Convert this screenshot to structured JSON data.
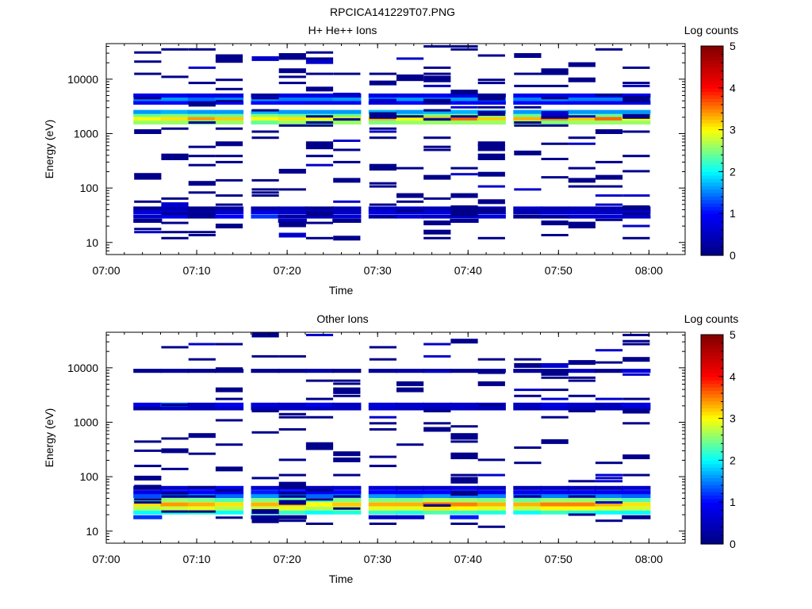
{
  "figure_title": "RPCICA141229T07.PNG",
  "chart_data": [
    {
      "type": "heatmap",
      "title": "H+ He++ Ions",
      "xlabel": "Time",
      "ylabel": "Energy (eV)",
      "x_ticks": [
        "07:00",
        "07:10",
        "07:20",
        "07:30",
        "07:40",
        "07:50",
        "08:00"
      ],
      "x_range": [
        "07:00",
        "08:04"
      ],
      "y_scale": "log",
      "y_ticks": [
        10,
        100,
        1000,
        10000
      ],
      "y_tick_labels": [
        "10",
        "100",
        "1000",
        "10000"
      ],
      "ylim": [
        6,
        45000
      ],
      "colorbar_label": "Log counts",
      "colorbar_range": [
        0,
        5
      ],
      "colorbar_ticks": [
        "0",
        "1",
        "2",
        "3",
        "4",
        "5"
      ],
      "colormap": [
        "#000080",
        "#0000ff",
        "#00ffff",
        "#ffff00",
        "#ff0000",
        "#800000"
      ],
      "sweep_start_times": [
        "07:03",
        "07:06",
        "07:09",
        "07:12",
        "07:16",
        "07:19",
        "07:22",
        "07:25",
        "07:29",
        "07:32",
        "07:35",
        "07:38",
        "07:41",
        "07:45",
        "07:48",
        "07:51",
        "07:54",
        "07:57"
      ],
      "cells": [
        {
          "energy": 1600,
          "level": [
            2.6,
            2.6,
            2.4,
            2.6,
            2.4,
            2.6,
            2.4,
            2.6,
            2.5,
            2.6,
            2.6,
            2.6,
            2.6,
            2.6,
            2.5,
            2.6,
            2.6,
            2.6
          ]
        },
        {
          "energy": 1900,
          "level": [
            3.0,
            3.1,
            3.4,
            3.2,
            3.0,
            3.1,
            3.0,
            3.1,
            3.3,
            3.0,
            3.4,
            3.6,
            3.2,
            3.3,
            3.5,
            3.2,
            3.6,
            3.0
          ]
        },
        {
          "energy": 2200,
          "level": [
            2.4,
            2.5,
            2.4,
            2.4,
            2.5,
            2.4,
            2.3,
            2.4,
            2.5,
            2.4,
            2.5,
            2.5,
            2.4,
            2.4,
            2.5,
            2.4,
            2.4,
            2.4
          ]
        },
        {
          "energy": 2500,
          "level": [
            1.6,
            1.7,
            1.6,
            1.6,
            1.7,
            1.6,
            1.6,
            1.6,
            1.7,
            1.6,
            1.7,
            1.7,
            1.6,
            1.6,
            1.7,
            1.6,
            1.6,
            1.6
          ]
        },
        {
          "energy": 3700,
          "level": [
            0.9,
            1.0,
            0.9,
            1.0,
            1.0,
            1.0,
            0.9,
            0.9,
            1.0,
            1.0,
            0.9,
            1.0,
            0.9,
            1.0,
            1.0,
            0.9,
            0.9,
            0.9
          ]
        },
        {
          "energy": 4300,
          "level": [
            1.5,
            1.6,
            1.4,
            1.5,
            1.6,
            1.5,
            1.5,
            1.6,
            1.5,
            1.6,
            1.5,
            1.6,
            1.5,
            1.5,
            1.6,
            1.5,
            1.5,
            1.5
          ]
        },
        {
          "energy": 5000,
          "level": [
            0.8,
            0.9,
            0.8,
            0.8,
            0.9,
            0.8,
            0.8,
            0.9,
            0.8,
            0.8,
            0.9,
            0.8,
            0.8,
            0.9,
            0.8,
            0.9,
            0.8,
            0.9
          ]
        },
        {
          "energy": 30,
          "level": [
            0.6,
            0.9,
            0.2,
            1.0,
            1.2,
            0.3,
            0.5,
            0.7,
            0.8,
            0.7,
            0.6,
            0.5,
            0.7,
            0.1,
            0.8,
            0.6,
            0.7,
            0.6
          ]
        },
        {
          "energy": 36,
          "level": [
            0.7,
            0.6,
            0.3,
            0.6,
            0.8,
            0.6,
            0.6,
            0.5,
            0.7,
            0.6,
            0.7,
            0.6,
            0.6,
            0.4,
            0.5,
            0.6,
            0.5,
            0.6
          ]
        },
        {
          "energy": 42,
          "level": [
            0.3,
            0.4,
            0.1,
            0.3,
            0.3,
            0.4,
            0.3,
            0.4,
            0.5,
            0.5,
            0.4,
            0.5,
            0.4,
            0.3,
            0.4,
            0.4,
            0.4,
            0.3
          ]
        },
        {
          "energy": 25,
          "level": [
            0.2,
            0,
            0,
            0,
            0,
            0.2,
            0,
            0.1,
            0,
            0,
            0,
            0.2,
            0,
            0,
            0,
            0,
            0,
            0
          ]
        }
      ],
      "sparse_fraction": 0.18
    },
    {
      "type": "heatmap",
      "title": "Other Ions",
      "xlabel": "Time",
      "ylabel": "Energy (eV)",
      "x_ticks": [
        "07:00",
        "07:10",
        "07:20",
        "07:30",
        "07:40",
        "07:50",
        "08:00"
      ],
      "x_range": [
        "07:00",
        "08:04"
      ],
      "y_scale": "log",
      "y_ticks": [
        10,
        100,
        1000,
        10000
      ],
      "y_tick_labels": [
        "10",
        "100",
        "1000",
        "10000"
      ],
      "ylim": [
        6,
        45000
      ],
      "colorbar_label": "Log counts",
      "colorbar_range": [
        0,
        5
      ],
      "colorbar_ticks": [
        "0",
        "1",
        "2",
        "3",
        "4",
        "5"
      ],
      "colormap": [
        "#000080",
        "#0000ff",
        "#00ffff",
        "#ffff00",
        "#ff0000",
        "#800000"
      ],
      "sweep_start_times": [
        "07:03",
        "07:06",
        "07:09",
        "07:12",
        "07:16",
        "07:19",
        "07:22",
        "07:25",
        "07:29",
        "07:32",
        "07:35",
        "07:38",
        "07:41",
        "07:45",
        "07:48",
        "07:51",
        "07:54",
        "07:57"
      ],
      "cells": [
        {
          "energy": 18,
          "level": [
            1.2,
            0,
            0,
            0,
            0.2,
            0.1,
            0,
            0,
            0.6,
            0.6,
            0,
            1.1,
            0,
            0,
            0,
            0,
            0,
            0.1
          ]
        },
        {
          "energy": 22,
          "level": [
            2.0,
            2.1,
            2.2,
            2.0,
            2.1,
            2.2,
            2.0,
            2.1,
            2.2,
            2.1,
            2.3,
            2.2,
            2.1,
            2.0,
            2.2,
            2.1,
            2.0,
            2.0
          ]
        },
        {
          "energy": 26,
          "level": [
            2.7,
            2.8,
            2.9,
            2.7,
            2.8,
            2.9,
            2.7,
            2.8,
            2.9,
            2.9,
            3.1,
            3.0,
            2.9,
            2.8,
            3.0,
            3.0,
            2.9,
            2.8
          ]
        },
        {
          "energy": 31,
          "level": [
            3.1,
            3.4,
            3.3,
            3.1,
            3.3,
            3.2,
            3.0,
            3.2,
            3.3,
            3.3,
            3.6,
            3.5,
            3.3,
            3.3,
            3.5,
            3.5,
            3.3,
            3.1
          ]
        },
        {
          "energy": 37,
          "level": [
            2.3,
            2.6,
            2.5,
            2.3,
            2.5,
            2.4,
            2.3,
            2.5,
            2.5,
            2.5,
            2.7,
            2.6,
            2.5,
            2.4,
            2.6,
            2.6,
            2.5,
            2.3
          ]
        },
        {
          "energy": 44,
          "level": [
            1.3,
            1.5,
            1.6,
            1.4,
            1.6,
            1.5,
            1.4,
            1.5,
            1.6,
            1.5,
            1.6,
            1.5,
            1.5,
            1.4,
            1.5,
            1.5,
            1.5,
            1.4
          ]
        },
        {
          "energy": 52,
          "level": [
            0.8,
            1.0,
            1.0,
            0.9,
            1.1,
            1.0,
            0.9,
            1.0,
            1.0,
            1.0,
            1.0,
            1.0,
            0.9,
            0.9,
            0.9,
            0.9,
            0.9,
            0.9
          ]
        },
        {
          "energy": 62,
          "level": [
            0.5,
            0.6,
            0.7,
            0.9,
            0.6,
            0.6,
            0.5,
            0.6,
            0.7,
            0.5,
            0.6,
            0.7,
            0.5,
            0.4,
            0.5,
            0.4,
            0.4,
            0.6
          ]
        },
        {
          "energy": 1800,
          "level": [
            0.5,
            0.5,
            0.4,
            0.5,
            0.4,
            0.5,
            0.4,
            0.5,
            0.6,
            0.5,
            0.4,
            0.5,
            0.4,
            0.4,
            0.6,
            0.4,
            0.4,
            0.6
          ]
        },
        {
          "energy": 2100,
          "level": [
            0.8,
            1.3,
            0.5,
            0.9,
            0.7,
            0.6,
            0.9,
            0.5,
            0.7,
            0.6,
            0.6,
            0.6,
            0.7,
            0.5,
            0.8,
            0.6,
            0.5,
            0.8
          ]
        },
        {
          "energy": 8800,
          "level": [
            0.1,
            0.2,
            0.1,
            0.1,
            0.1,
            0.1,
            0.3,
            0.1,
            0.2,
            0.3,
            0.1,
            0.1,
            0.5,
            0.2,
            0.4,
            0.5,
            0.1,
            0.7
          ]
        }
      ],
      "sparse_fraction": 0.14
    }
  ]
}
